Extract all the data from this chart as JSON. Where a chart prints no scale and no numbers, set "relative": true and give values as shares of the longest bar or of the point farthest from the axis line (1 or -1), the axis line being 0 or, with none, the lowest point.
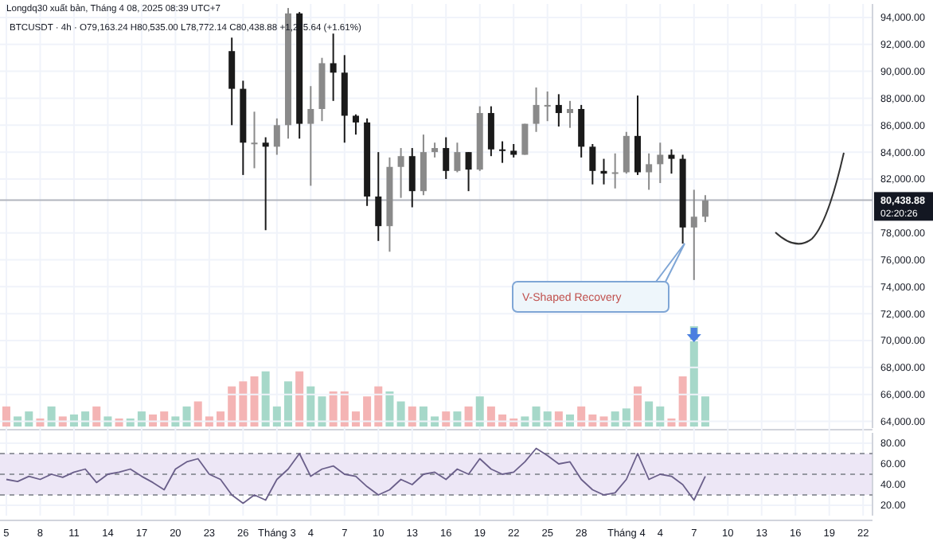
{
  "chart_data": [
    {
      "type": "candlestick",
      "title": "Longdq30 xuất bản, Tháng 4 08, 2025 08:39 UTC+7",
      "subtitle": "BTCUSDT · 4h · O79,163.24 H80,535.00 L78,772.14 C80,438.88 +1,275.64 (+1.61%)",
      "x": [
        "2025-02-25",
        "2025-02-26",
        "2025-02-27",
        "2025-02-28",
        "2025-03-01",
        "2025-03-02",
        "2025-03-03",
        "2025-03-04",
        "2025-03-05",
        "2025-03-06",
        "2025-03-07",
        "2025-03-08",
        "2025-03-09",
        "2025-03-10",
        "2025-03-11",
        "2025-03-12",
        "2025-03-13",
        "2025-03-14",
        "2025-03-15",
        "2025-03-16",
        "2025-03-17",
        "2025-03-18",
        "2025-03-19",
        "2025-03-20",
        "2025-03-21",
        "2025-03-22",
        "2025-03-23",
        "2025-03-24",
        "2025-03-25",
        "2025-03-26",
        "2025-03-27",
        "2025-03-28",
        "2025-03-29",
        "2025-03-30",
        "2025-03-31",
        "2025-04-01",
        "2025-04-02",
        "2025-04-03",
        "2025-04-04",
        "2025-04-05",
        "2025-04-06",
        "2025-04-07",
        "2025-04-08"
      ],
      "ohlc": [
        [
          91500,
          92500,
          86000,
          88700
        ],
        [
          88700,
          89300,
          82300,
          84700
        ],
        [
          84700,
          87000,
          82800,
          84700
        ],
        [
          84700,
          85100,
          78200,
          84400
        ],
        [
          84400,
          86500,
          83800,
          86000
        ],
        [
          86000,
          94700,
          85000,
          94300
        ],
        [
          94300,
          94400,
          85000,
          86100
        ],
        [
          86100,
          88900,
          81500,
          87200
        ],
        [
          87200,
          91000,
          86300,
          90600
        ],
        [
          90600,
          92800,
          87800,
          89900
        ],
        [
          89900,
          91200,
          84700,
          86700
        ],
        [
          86700,
          86800,
          85300,
          86200
        ],
        [
          86200,
          86500,
          80000,
          80700
        ],
        [
          80700,
          84000,
          77400,
          78500
        ],
        [
          78500,
          83600,
          76600,
          82900
        ],
        [
          82900,
          84300,
          80600,
          83700
        ],
        [
          83700,
          84300,
          79900,
          81100
        ],
        [
          81100,
          85300,
          80800,
          84000
        ],
        [
          84000,
          84700,
          83600,
          84300
        ],
        [
          84300,
          85100,
          82000,
          82600
        ],
        [
          82600,
          84700,
          82500,
          84000
        ],
        [
          84000,
          84000,
          81100,
          82700
        ],
        [
          82700,
          87400,
          82600,
          86900
        ],
        [
          86900,
          87400,
          83700,
          84200
        ],
        [
          84200,
          84800,
          83200,
          84100
        ],
        [
          84100,
          84600,
          83600,
          83800
        ],
        [
          83800,
          86100,
          83800,
          86100
        ],
        [
          86100,
          88800,
          85500,
          87500
        ],
        [
          87500,
          88500,
          86300,
          87500
        ],
        [
          87500,
          88300,
          85900,
          86900
        ],
        [
          86900,
          87800,
          85800,
          87200
        ],
        [
          87200,
          87500,
          83600,
          84400
        ],
        [
          84400,
          84600,
          81600,
          82600
        ],
        [
          82600,
          83500,
          81600,
          82400
        ],
        [
          82400,
          83900,
          81300,
          82500
        ],
        [
          82500,
          85500,
          82400,
          85200
        ],
        [
          85200,
          88200,
          82300,
          82500
        ],
        [
          82500,
          83900,
          81200,
          83100
        ],
        [
          83100,
          84700,
          81700,
          83800
        ],
        [
          83800,
          84200,
          82400,
          83500
        ],
        [
          83500,
          83800,
          77200,
          78400
        ],
        [
          78400,
          81200,
          74500,
          79200
        ],
        [
          79200,
          80800,
          78800,
          80400
        ]
      ],
      "xlim": [
        "2025-02-04T10:30",
        "2025-04-22T20:00"
      ],
      "ylim": [
        63500,
        95000
      ],
      "yticks": [
        {
          "value": 64000,
          "label": "64,000.00"
        },
        {
          "value": 66000,
          "label": "66,000.00"
        },
        {
          "value": 68000,
          "label": "68,000.00"
        },
        {
          "value": 70000,
          "label": "70,000.00"
        },
        {
          "value": 72000,
          "label": "72,000.00"
        },
        {
          "value": 74000,
          "label": "74,000.00"
        },
        {
          "value": 76000,
          "label": "76,000.00"
        },
        {
          "value": 78000,
          "label": "78,000.00"
        },
        {
          "value": 82000,
          "label": "82,000.00"
        },
        {
          "value": 84000,
          "label": "84,000.00"
        },
        {
          "value": 86000,
          "label": "86,000.00"
        },
        {
          "value": 88000,
          "label": "88,000.00"
        },
        {
          "value": 90000,
          "label": "90,000.00"
        },
        {
          "value": 92000,
          "label": "92,000.00"
        },
        {
          "value": 94000,
          "label": "94,000.00"
        }
      ],
      "grid": "y",
      "tick_labels": "y",
      "ref_lines": [
        {
          "axis": "y",
          "value": 80438.88,
          "label": "80,438.88",
          "color": "#b2b5be"
        }
      ],
      "annotations": [
        "V-Shaped Recovery",
        "02:20:26"
      ]
    },
    {
      "type": "bar",
      "relative": true,
      "tick_labels": false,
      "xlim": [
        "2025-02-04T10:30",
        "2025-04-22T20:00"
      ],
      "x": [
        "2025-02-05",
        "2025-02-06",
        "2025-02-07",
        "2025-02-08",
        "2025-02-09",
        "2025-02-10",
        "2025-02-11",
        "2025-02-12",
        "2025-02-13",
        "2025-02-14",
        "2025-02-15",
        "2025-02-16",
        "2025-02-17",
        "2025-02-18",
        "2025-02-19",
        "2025-02-20",
        "2025-02-21",
        "2025-02-22",
        "2025-02-23",
        "2025-02-24",
        "2025-02-25",
        "2025-02-26",
        "2025-02-27",
        "2025-02-28",
        "2025-03-01",
        "2025-03-02",
        "2025-03-03",
        "2025-03-04",
        "2025-03-05",
        "2025-03-06",
        "2025-03-07",
        "2025-03-08",
        "2025-03-09",
        "2025-03-10",
        "2025-03-11",
        "2025-03-12",
        "2025-03-13",
        "2025-03-14",
        "2025-03-15",
        "2025-03-16",
        "2025-03-17",
        "2025-03-18",
        "2025-03-19",
        "2025-03-20",
        "2025-03-21",
        "2025-03-22",
        "2025-03-23",
        "2025-03-24",
        "2025-03-25",
        "2025-03-26",
        "2025-03-27",
        "2025-03-28",
        "2025-03-29",
        "2025-03-30",
        "2025-03-31",
        "2025-04-01",
        "2025-04-02",
        "2025-04-03",
        "2025-04-04",
        "2025-04-05",
        "2025-04-06",
        "2025-04-07",
        "2025-04-08"
      ],
      "values": [
        0.2,
        0.1,
        0.15,
        0.08,
        0.2,
        0.1,
        0.12,
        0.15,
        0.2,
        0.1,
        0.08,
        0.08,
        0.15,
        0.12,
        0.15,
        0.1,
        0.2,
        0.25,
        0.1,
        0.15,
        0.4,
        0.45,
        0.5,
        0.55,
        0.2,
        0.45,
        0.55,
        0.4,
        0.3,
        0.35,
        0.35,
        0.15,
        0.3,
        0.4,
        0.35,
        0.25,
        0.2,
        0.2,
        0.1,
        0.15,
        0.15,
        0.2,
        0.3,
        0.2,
        0.12,
        0.08,
        0.1,
        0.2,
        0.15,
        0.15,
        0.12,
        0.2,
        0.12,
        0.1,
        0.15,
        0.18,
        0.4,
        0.25,
        0.2,
        0.08,
        0.5,
        1,
        0.3
      ],
      "colors": [
        "#f4b4b4",
        "#a6d8c9",
        "#a6d8c9",
        "#f4b4b4",
        "#a6d8c9",
        "#f4b4b4",
        "#a6d8c9",
        "#a6d8c9",
        "#f4b4b4",
        "#a6d8c9",
        "#f4b4b4",
        "#a6d8c9",
        "#a6d8c9",
        "#f4b4b4",
        "#f4b4b4",
        "#a6d8c9",
        "#a6d8c9",
        "#f4b4b4",
        "#f4b4b4",
        "#f4b4b4",
        "#f4b4b4",
        "#f4b4b4",
        "#f4b4b4",
        "#a6d8c9",
        "#a6d8c9",
        "#a6d8c9",
        "#f4b4b4",
        "#a6d8c9",
        "#a6d8c9",
        "#f4b4b4",
        "#f4b4b4",
        "#f4b4b4",
        "#f4b4b4",
        "#f4b4b4",
        "#a6d8c9",
        "#a6d8c9",
        "#f4b4b4",
        "#a6d8c9",
        "#a6d8c9",
        "#f4b4b4",
        "#a6d8c9",
        "#f4b4b4",
        "#a6d8c9",
        "#f4b4b4",
        "#f4b4b4",
        "#f4b4b4",
        "#a6d8c9",
        "#a6d8c9",
        "#a6d8c9",
        "#f4b4b4",
        "#a6d8c9",
        "#f4b4b4",
        "#f4b4b4",
        "#f4b4b4",
        "#a6d8c9",
        "#a6d8c9",
        "#f4b4b4",
        "#a6d8c9",
        "#a6d8c9",
        "#f4b4b4",
        "#f4b4b4",
        "#a6d8c9",
        "#a6d8c9"
      ]
    },
    {
      "type": "line",
      "xlim": [
        "2025-02-04T10:30",
        "2025-04-22T20:00"
      ],
      "ylim": [
        10,
        90
      ],
      "yticks": [
        {
          "value": 20,
          "label": "20.00"
        },
        {
          "value": 40,
          "label": "40.00"
        },
        {
          "value": 60,
          "label": "60.00"
        },
        {
          "value": 80,
          "label": "80.00"
        }
      ],
      "xticks": [
        {
          "value": "2025-02-05",
          "label": "5"
        },
        {
          "value": "2025-02-08",
          "label": "8"
        },
        {
          "value": "2025-02-11",
          "label": "11"
        },
        {
          "value": "2025-02-14",
          "label": "14"
        },
        {
          "value": "2025-02-17",
          "label": "17"
        },
        {
          "value": "2025-02-20",
          "label": "20"
        },
        {
          "value": "2025-02-23",
          "label": "23"
        },
        {
          "value": "2025-02-26",
          "label": "26"
        },
        {
          "value": "2025-03-01",
          "label": "Tháng 3"
        },
        {
          "value": "2025-03-04",
          "label": "4"
        },
        {
          "value": "2025-03-07",
          "label": "7"
        },
        {
          "value": "2025-03-10",
          "label": "10"
        },
        {
          "value": "2025-03-13",
          "label": "13"
        },
        {
          "value": "2025-03-16",
          "label": "16"
        },
        {
          "value": "2025-03-19",
          "label": "19"
        },
        {
          "value": "2025-03-22",
          "label": "22"
        },
        {
          "value": "2025-03-25",
          "label": "25"
        },
        {
          "value": "2025-03-28",
          "label": "28"
        },
        {
          "value": "2025-04-01",
          "label": "Tháng 4"
        },
        {
          "value": "2025-04-04",
          "label": "4"
        },
        {
          "value": "2025-04-07",
          "label": "7"
        },
        {
          "value": "2025-04-10",
          "label": "10"
        },
        {
          "value": "2025-04-13",
          "label": "13"
        },
        {
          "value": "2025-04-16",
          "label": "16"
        },
        {
          "value": "2025-04-19",
          "label": "19"
        },
        {
          "value": "2025-04-22",
          "label": "22"
        }
      ],
      "grid": true,
      "bands": [
        {
          "axis": "y",
          "from": 30,
          "to": 70,
          "color": "#ede7f6"
        }
      ],
      "ref_lines": [
        {
          "axis": "y",
          "value": 70,
          "line_style": "dashed"
        },
        {
          "axis": "y",
          "value": 50,
          "line_style": "dashed"
        },
        {
          "axis": "y",
          "value": 30,
          "line_style": "dashed"
        }
      ],
      "x": [
        "2025-02-05",
        "2025-02-06",
        "2025-02-07",
        "2025-02-08",
        "2025-02-09",
        "2025-02-10",
        "2025-02-11",
        "2025-02-12",
        "2025-02-13",
        "2025-02-14",
        "2025-02-15",
        "2025-02-16",
        "2025-02-17",
        "2025-02-18",
        "2025-02-19",
        "2025-02-20",
        "2025-02-21",
        "2025-02-22",
        "2025-02-23",
        "2025-02-24",
        "2025-02-25",
        "2025-02-26",
        "2025-02-27",
        "2025-02-28",
        "2025-03-01",
        "2025-03-02",
        "2025-03-03",
        "2025-03-04",
        "2025-03-05",
        "2025-03-06",
        "2025-03-07",
        "2025-03-08",
        "2025-03-09",
        "2025-03-10",
        "2025-03-11",
        "2025-03-12",
        "2025-03-13",
        "2025-03-14",
        "2025-03-15",
        "2025-03-16",
        "2025-03-17",
        "2025-03-18",
        "2025-03-19",
        "2025-03-20",
        "2025-03-21",
        "2025-03-22",
        "2025-03-23",
        "2025-03-24",
        "2025-03-25",
        "2025-03-26",
        "2025-03-27",
        "2025-03-28",
        "2025-03-29",
        "2025-03-30",
        "2025-03-31",
        "2025-04-01",
        "2025-04-02",
        "2025-04-03",
        "2025-04-04",
        "2025-04-05",
        "2025-04-06",
        "2025-04-07",
        "2025-04-08"
      ],
      "series": [
        {
          "color": "#6a5f8a",
          "values": [
            45,
            43,
            48,
            45,
            50,
            47,
            52,
            55,
            42,
            50,
            52,
            55,
            48,
            42,
            35,
            55,
            62,
            65,
            50,
            45,
            30,
            22,
            30,
            25,
            45,
            55,
            70,
            48,
            55,
            58,
            50,
            48,
            38,
            30,
            35,
            45,
            40,
            50,
            52,
            45,
            55,
            50,
            65,
            55,
            50,
            52,
            62,
            75,
            68,
            60,
            62,
            45,
            35,
            30,
            32,
            45,
            70,
            45,
            50,
            48,
            40,
            25,
            48
          ]
        }
      ]
    }
  ]
}
